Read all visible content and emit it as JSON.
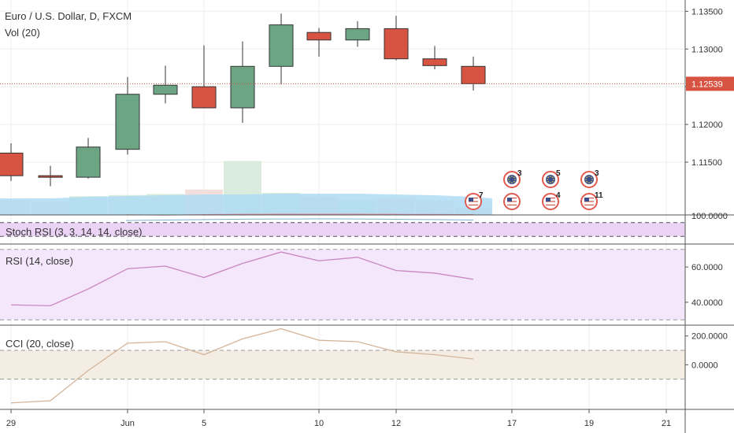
{
  "header": {
    "title": "Euro / U.S. Dollar, D, FXCM",
    "volume_label": "Vol (20)"
  },
  "price_axis": {
    "ticks": [
      "1.13500",
      "1.13000",
      "1.12500",
      "1.12000",
      "1.11500"
    ],
    "last_price": "1.12539"
  },
  "x_axis": {
    "ticks": [
      "29",
      "Jun",
      "5",
      "10",
      "12",
      "17",
      "19",
      "21"
    ]
  },
  "colors": {
    "up": "#6ba583",
    "down": "#d75442",
    "up_vol": "#d9ecdd",
    "down_vol": "#f3dede",
    "ma_area": "#aedcf4",
    "stoch_bg": "#ead3f5",
    "rsi_bg": "#f4e6fb",
    "rsi_line": "#c987c0",
    "cci_bg": "#f3ede3",
    "cci_line": "#d4b59a"
  },
  "chart_data": [
    {
      "type": "candlestick",
      "title": "Euro / U.S. Dollar, D, FXCM",
      "ylim": [
        1.108,
        1.1365
      ],
      "candles": [
        {
          "x": "May 29",
          "open": 1.1162,
          "high": 1.1175,
          "low": 1.1125,
          "close": 1.1132
        },
        {
          "x": "May 30",
          "open": 1.1132,
          "high": 1.1145,
          "low": 1.1118,
          "close": 1.113
        },
        {
          "x": "May 31",
          "open": 1.113,
          "high": 1.1182,
          "low": 1.1128,
          "close": 1.117
        },
        {
          "x": "Jun 1",
          "open": 1.1167,
          "high": 1.1263,
          "low": 1.116,
          "close": 1.124
        },
        {
          "x": "Jun 2",
          "open": 1.124,
          "high": 1.1278,
          "low": 1.1228,
          "close": 1.1252
        },
        {
          "x": "Jun 5",
          "open": 1.125,
          "high": 1.1305,
          "low": 1.1222,
          "close": 1.1222
        },
        {
          "x": "Jun 6",
          "open": 1.1222,
          "high": 1.131,
          "low": 1.1202,
          "close": 1.1277
        },
        {
          "x": "Jun 7",
          "open": 1.1277,
          "high": 1.1347,
          "low": 1.1253,
          "close": 1.1332
        },
        {
          "x": "Jun 8",
          "open": 1.1322,
          "high": 1.1328,
          "low": 1.129,
          "close": 1.1312
        },
        {
          "x": "Jun 9",
          "open": 1.1312,
          "high": 1.1337,
          "low": 1.1303,
          "close": 1.1327
        },
        {
          "x": "Jun 12",
          "open": 1.1327,
          "high": 1.1344,
          "low": 1.1285,
          "close": 1.1287
        },
        {
          "x": "Jun 13",
          "open": 1.1287,
          "high": 1.1304,
          "low": 1.1273,
          "close": 1.1278
        },
        {
          "x": "Jun 14",
          "open": 1.1277,
          "high": 1.129,
          "low": 1.1245,
          "close": 1.1254
        }
      ],
      "volume": [
        {
          "x": "May 29",
          "dir": "down",
          "level": 0.14
        },
        {
          "x": "May 30",
          "dir": "down",
          "level": 0.12
        },
        {
          "x": "May 31",
          "dir": "up",
          "level": 0.17
        },
        {
          "x": "Jun 1",
          "dir": "up",
          "level": 0.18
        },
        {
          "x": "Jun 2",
          "dir": "up",
          "level": 0.19
        },
        {
          "x": "Jun 5",
          "dir": "down",
          "level": 0.23
        },
        {
          "x": "Jun 6",
          "dir": "up",
          "level": 0.49
        },
        {
          "x": "Jun 7",
          "dir": "up",
          "level": 0.2
        },
        {
          "x": "Jun 8",
          "dir": "down",
          "level": 0.17
        },
        {
          "x": "Jun 9",
          "dir": "up",
          "level": 0.14
        },
        {
          "x": "Jun 12",
          "dir": "down",
          "level": 0.15
        },
        {
          "x": "Jun 13",
          "dir": "down",
          "level": 0.13
        },
        {
          "x": "Jun 14",
          "dir": "down",
          "level": 0.07
        }
      ],
      "events": [
        {
          "x": "Jun 14",
          "row": "lower",
          "count": "7"
        },
        {
          "x": "Jun 15",
          "row": "upper",
          "count": "3"
        },
        {
          "x": "Jun 15",
          "row": "lower",
          "count": ""
        },
        {
          "x": "Jun 16",
          "row": "upper",
          "count": "5"
        },
        {
          "x": "Jun 16",
          "row": "lower",
          "count": "4"
        },
        {
          "x": "Jun 17",
          "row": "upper",
          "count": "3"
        },
        {
          "x": "Jun 17",
          "row": "lower",
          "count": "11"
        }
      ]
    },
    {
      "type": "line",
      "title": "Stoch RSI (3, 3, 14, 14, close)",
      "ylim": [
        0,
        100
      ],
      "levels": [
        80,
        20
      ],
      "series": [
        {
          "values": [
            96,
            93,
            97,
            99,
            100,
            100,
            100,
            99,
            98,
            97
          ]
        },
        {
          "values": [
            88,
            92,
            95,
            98,
            99,
            100,
            99,
            97,
            95,
            92
          ]
        }
      ]
    },
    {
      "type": "line",
      "title": "RSI (14, close)",
      "ylim": [
        27,
        73
      ],
      "levels": [
        70,
        30
      ],
      "yticks": [
        "60.0000",
        "40.0000"
      ],
      "values": [
        38.5,
        38.0,
        47.5,
        59.0,
        60.5,
        54.0,
        62.0,
        68.5,
        63.5,
        65.5,
        58.0,
        56.5,
        53.0
      ]
    },
    {
      "type": "line",
      "title": "CCI (20, close)",
      "ylim": [
        -310,
        275
      ],
      "levels": [
        100,
        -100
      ],
      "yticks": [
        "200.0000",
        "0.0000"
      ],
      "values": [
        -265,
        -250,
        -40,
        150,
        160,
        70,
        180,
        250,
        170,
        160,
        90,
        70,
        40
      ]
    }
  ]
}
